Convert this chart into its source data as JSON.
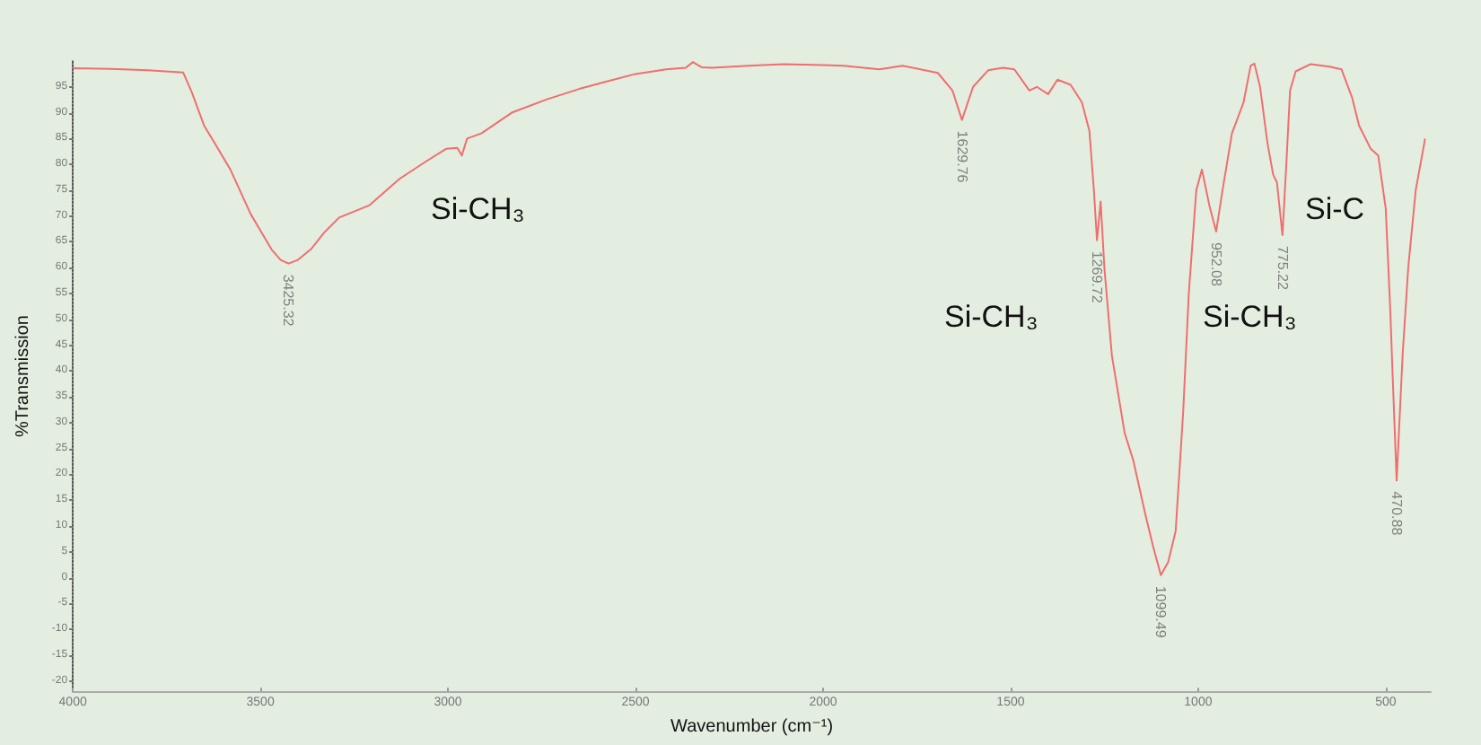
{
  "chart_data": {
    "type": "line",
    "xlabel": "Wavenumber (cm⁻¹)",
    "ylabel": "%Transmission",
    "xlim": [
      4000,
      380
    ],
    "xticks": [
      4000,
      3500,
      3000,
      2500,
      2000,
      1500,
      1000,
      500
    ],
    "ylim": [
      -22,
      100
    ],
    "yticks": [
      -20,
      -15,
      -10,
      -5,
      0,
      5,
      10,
      15,
      20,
      25,
      30,
      35,
      40,
      45,
      50,
      55,
      60,
      65,
      70,
      75,
      80,
      85,
      90,
      95
    ],
    "marker": "none",
    "line_style": "solid",
    "annotations": [
      "Si-CH₃",
      "Si-CH₃",
      "Si-CH₃",
      "Si-C",
      {
        "text": "3425.32",
        "x": 3425.32,
        "y": 60.8
      },
      {
        "text": "1629.76",
        "x": 1629.76,
        "y": 88.6
      },
      {
        "text": "1269.72",
        "x": 1269.72,
        "y": 65.3
      },
      {
        "text": "1099.49",
        "x": 1099.49,
        "y": 0.5
      },
      {
        "text": "952.08",
        "x": 952.08,
        "y": 67
      },
      {
        "text": "775.22",
        "x": 775.22,
        "y": 66.3
      },
      {
        "text": "470.88",
        "x": 470.88,
        "y": 18.8
      }
    ],
    "series": [
      {
        "color": "#f06e6e",
        "x": [
          4000,
          3900,
          3800,
          3706,
          3683,
          3650,
          3621,
          3580,
          3526,
          3470,
          3446,
          3425.32,
          3400,
          3365,
          3330,
          3290,
          3209,
          3129,
          3060,
          3005,
          2975,
          2963,
          2949,
          2911,
          2830,
          2736,
          2650,
          2579,
          2500,
          2418,
          2366,
          2347,
          2324,
          2295,
          2200,
          2105,
          2000,
          1945,
          1850,
          1788,
          1694,
          1655,
          1629.76,
          1600,
          1560,
          1520,
          1490,
          1450,
          1430,
          1400,
          1375,
          1340,
          1310,
          1290,
          1278,
          1269.72,
          1260,
          1250,
          1230,
          1196,
          1173,
          1140,
          1120,
          1099.49,
          1080,
          1060,
          1040,
          1025,
          1005,
          990,
          970,
          952.08,
          935,
          910,
          879,
          860,
          850,
          835,
          815,
          800,
          790,
          775.22,
          765,
          755,
          740,
          700,
          650,
          618,
          590,
          571,
          540,
          520,
          500,
          488,
          482,
          470.88,
          455,
          440,
          420,
          395
        ],
        "values": [
          98.6,
          98.5,
          98.2,
          97.8,
          94,
          87.5,
          84,
          79,
          70.4,
          63.5,
          61.5,
          60.8,
          61.5,
          63.6,
          66.8,
          69.7,
          72.1,
          77.2,
          80.5,
          83,
          83.2,
          81.7,
          85,
          86,
          90,
          92.6,
          94.6,
          96,
          97.5,
          98.4,
          98.7,
          99.8,
          98.8,
          98.7,
          99.1,
          99.4,
          99.2,
          99.1,
          98.4,
          99.1,
          97.7,
          94.3,
          88.6,
          95,
          98.2,
          98.7,
          98.4,
          94.3,
          95,
          93.6,
          96.4,
          95.4,
          92,
          86.5,
          75,
          65.3,
          72.8,
          60,
          43,
          28,
          22.7,
          12,
          6,
          0.5,
          3,
          9,
          32,
          55,
          75,
          79,
          72,
          67,
          75,
          86,
          92,
          99.1,
          99.5,
          95,
          84,
          78,
          76.5,
          66.3,
          80,
          94.3,
          98,
          99.4,
          98.9,
          98.4,
          93,
          87.5,
          83,
          81.7,
          71.5,
          52,
          40,
          18.8,
          43,
          60,
          75,
          85
        ]
      }
    ]
  }
}
